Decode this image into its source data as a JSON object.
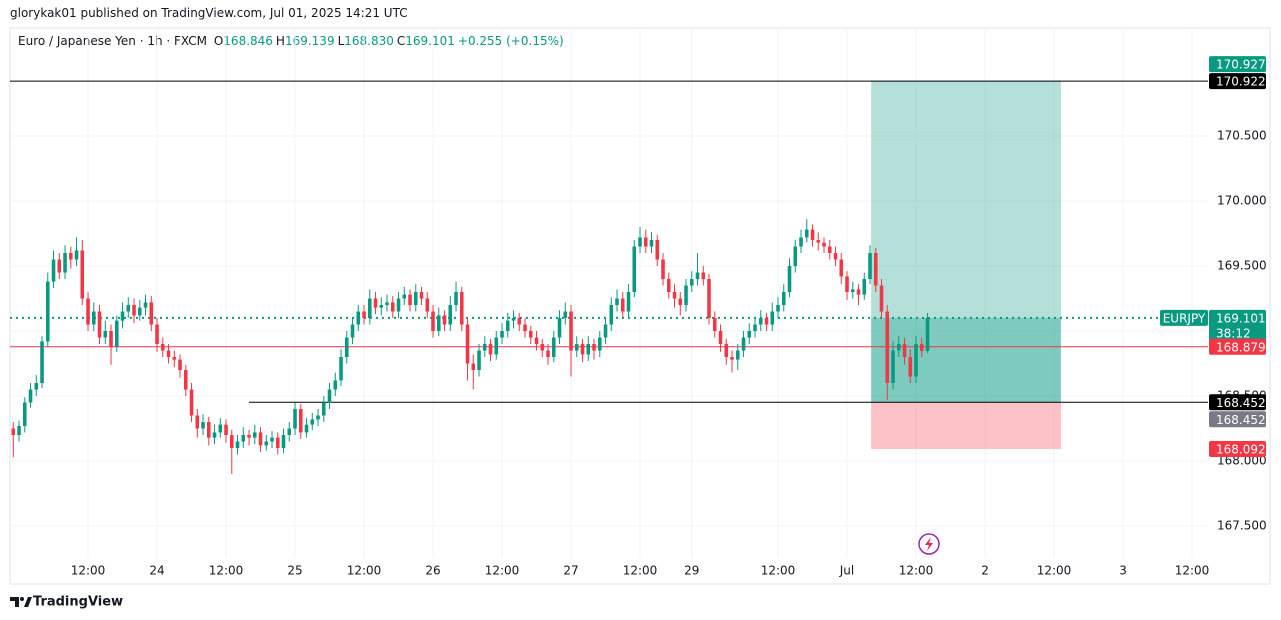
{
  "header": {
    "publisher": "glorykak01 published on TradingView.com, Jul 01, 2025 14:21 UTC"
  },
  "chart_data": {
    "type": "candlestick",
    "title": "Euro / Japanese Yen · 1h · FXCM",
    "ohlc": [
      {
        "label": "O",
        "value": "168.846"
      },
      {
        "label": "H",
        "value": "169.139"
      },
      {
        "label": "L",
        "value": "168.830"
      },
      {
        "label": "C",
        "value": "169.101"
      }
    ],
    "change": "+0.255 (+0.15%)",
    "symbol": "EURJPY",
    "countdown": "38:12",
    "up_color": "#089981",
    "down_color": "#f23645",
    "grid": true,
    "xlim": [
      -0.57,
      207.78
    ],
    "xticks": [
      {
        "value": 13,
        "label": "12:00"
      },
      {
        "value": 25,
        "label": "24"
      },
      {
        "value": 37,
        "label": "12:00"
      },
      {
        "value": 49,
        "label": "25"
      },
      {
        "value": 61,
        "label": "12:00"
      },
      {
        "value": 73,
        "label": "26"
      },
      {
        "value": 85,
        "label": "12:00"
      },
      {
        "value": 97,
        "label": "27"
      },
      {
        "value": 109,
        "label": "12:00"
      },
      {
        "value": 118,
        "label": "29"
      },
      {
        "value": 133,
        "label": "12:00"
      },
      {
        "value": 145,
        "label": "Jul"
      },
      {
        "value": 157,
        "label": "12:00"
      },
      {
        "value": 169,
        "label": "2"
      },
      {
        "value": 181,
        "label": "12:00"
      },
      {
        "value": 193,
        "label": "3"
      },
      {
        "value": 205,
        "label": "12:00"
      }
    ],
    "ylim": [
      167.054,
      171.331
    ],
    "yticks": [
      {
        "value": 167.5,
        "label": "167.500"
      },
      {
        "value": 168,
        "label": "168.000"
      },
      {
        "value": 168.5,
        "label": "168.500"
      },
      {
        "value": 169,
        "label": "169.000"
      },
      {
        "value": 169.5,
        "label": "169.500"
      },
      {
        "value": 170,
        "label": "170.000"
      },
      {
        "value": 170.5,
        "label": "170.500"
      }
    ],
    "last_price": 169.101,
    "lines": [
      {
        "value": 170.922,
        "color": "#000000"
      },
      {
        "value": 168.452,
        "color": "#000000",
        "from": 41
      },
      {
        "value": 168.879,
        "color": "#f23645"
      }
    ],
    "position": {
      "x_range": [
        149.2,
        182.2
      ],
      "target": 170.927,
      "entry": 168.452,
      "stop": 168.092
    },
    "price_labels": [
      {
        "value": 170.922,
        "color": "#000000"
      },
      {
        "value": 170.927,
        "color": "#089981"
      },
      {
        "value": 169.101,
        "color": "#089981"
      },
      {
        "value": 168.879,
        "color": "#f23645"
      },
      {
        "value": 168.452,
        "color": "#000000"
      },
      {
        "value": 168.452,
        "color": "#787b86"
      },
      {
        "value": 168.092,
        "color": "#f23645"
      }
    ],
    "candles": [
      [
        168.25,
        168.3,
        168.03,
        168.2
      ],
      [
        168.2,
        168.31,
        168.15,
        168.27
      ],
      [
        168.27,
        168.49,
        168.22,
        168.45
      ],
      [
        168.45,
        168.6,
        168.41,
        168.55
      ],
      [
        168.55,
        168.66,
        168.5,
        168.6
      ],
      [
        168.6,
        168.96,
        168.56,
        168.92
      ],
      [
        168.92,
        169.45,
        168.88,
        169.38
      ],
      [
        169.38,
        169.62,
        169.33,
        169.55
      ],
      [
        169.55,
        169.6,
        169.4,
        169.45
      ],
      [
        169.45,
        169.66,
        169.4,
        169.6
      ],
      [
        169.6,
        169.65,
        169.48,
        169.55
      ],
      [
        169.55,
        169.72,
        169.5,
        169.62
      ],
      [
        169.62,
        169.7,
        169.2,
        169.25
      ],
      [
        169.25,
        169.3,
        169.0,
        169.05
      ],
      [
        169.05,
        169.22,
        169.0,
        169.15
      ],
      [
        169.15,
        169.2,
        168.9,
        168.95
      ],
      [
        168.95,
        169.08,
        168.9,
        169.0
      ],
      [
        169.0,
        169.05,
        168.74,
        168.88
      ],
      [
        168.88,
        169.12,
        168.84,
        169.08
      ],
      [
        169.08,
        169.22,
        169.02,
        169.15
      ],
      [
        169.15,
        169.26,
        169.1,
        169.2
      ],
      [
        169.2,
        169.25,
        169.06,
        169.12
      ],
      [
        169.12,
        169.24,
        169.08,
        169.18
      ],
      [
        169.18,
        169.28,
        169.12,
        169.22
      ],
      [
        169.22,
        169.27,
        169.0,
        169.05
      ],
      [
        169.05,
        169.1,
        168.84,
        168.9
      ],
      [
        168.9,
        168.95,
        168.8,
        168.85
      ],
      [
        168.85,
        168.9,
        168.75,
        168.8
      ],
      [
        168.8,
        168.85,
        168.72,
        168.78
      ],
      [
        168.78,
        168.82,
        168.64,
        168.7
      ],
      [
        168.7,
        168.74,
        168.5,
        168.55
      ],
      [
        168.55,
        168.6,
        168.3,
        168.35
      ],
      [
        168.35,
        168.4,
        168.18,
        168.25
      ],
      [
        168.25,
        168.36,
        168.2,
        168.3
      ],
      [
        168.3,
        168.34,
        168.12,
        168.18
      ],
      [
        168.18,
        168.28,
        168.13,
        168.22
      ],
      [
        168.22,
        168.33,
        168.18,
        168.28
      ],
      [
        168.28,
        168.32,
        168.14,
        168.2
      ],
      [
        168.2,
        168.24,
        167.9,
        168.1
      ],
      [
        168.1,
        168.2,
        168.05,
        168.15
      ],
      [
        168.15,
        168.26,
        168.1,
        168.2
      ],
      [
        168.2,
        168.24,
        168.12,
        168.18
      ],
      [
        168.18,
        168.28,
        168.13,
        168.22
      ],
      [
        168.22,
        168.26,
        168.07,
        168.12
      ],
      [
        168.12,
        168.2,
        168.08,
        168.15
      ],
      [
        168.15,
        168.23,
        168.1,
        168.18
      ],
      [
        168.18,
        168.22,
        168.05,
        168.1
      ],
      [
        168.1,
        168.25,
        168.06,
        168.2
      ],
      [
        168.2,
        168.3,
        168.15,
        168.25
      ],
      [
        168.25,
        168.45,
        168.2,
        168.4
      ],
      [
        168.4,
        168.44,
        168.17,
        168.22
      ],
      [
        168.22,
        168.33,
        168.18,
        168.28
      ],
      [
        168.28,
        168.37,
        168.24,
        168.32
      ],
      [
        168.32,
        168.4,
        168.27,
        168.35
      ],
      [
        168.35,
        168.5,
        168.3,
        168.45
      ],
      [
        168.45,
        168.6,
        168.4,
        168.55
      ],
      [
        168.55,
        168.68,
        168.5,
        168.62
      ],
      [
        168.62,
        168.86,
        168.58,
        168.8
      ],
      [
        168.8,
        169.0,
        168.75,
        168.95
      ],
      [
        168.95,
        169.1,
        168.9,
        169.05
      ],
      [
        169.05,
        169.2,
        169.0,
        169.15
      ],
      [
        169.15,
        169.2,
        169.05,
        169.1
      ],
      [
        169.1,
        169.32,
        169.05,
        169.25
      ],
      [
        169.25,
        169.3,
        169.13,
        169.18
      ],
      [
        169.18,
        169.26,
        169.12,
        169.2
      ],
      [
        169.2,
        169.28,
        169.15,
        169.22
      ],
      [
        169.22,
        169.27,
        169.1,
        169.15
      ],
      [
        169.15,
        169.3,
        169.1,
        169.25
      ],
      [
        169.25,
        169.34,
        169.2,
        169.28
      ],
      [
        169.28,
        169.32,
        169.15,
        169.2
      ],
      [
        169.2,
        169.36,
        169.15,
        169.3
      ],
      [
        169.3,
        169.34,
        169.2,
        169.25
      ],
      [
        169.25,
        169.3,
        169.1,
        169.15
      ],
      [
        169.15,
        169.2,
        168.95,
        169.0
      ],
      [
        169.0,
        169.18,
        168.96,
        169.12
      ],
      [
        169.12,
        169.16,
        169.0,
        169.05
      ],
      [
        169.05,
        169.27,
        169.0,
        169.2
      ],
      [
        169.2,
        169.38,
        169.15,
        169.3
      ],
      [
        169.3,
        169.34,
        169.0,
        169.05
      ],
      [
        169.05,
        169.1,
        168.62,
        168.75
      ],
      [
        168.75,
        168.82,
        168.55,
        168.7
      ],
      [
        168.7,
        168.9,
        168.65,
        168.85
      ],
      [
        168.85,
        168.96,
        168.8,
        168.9
      ],
      [
        168.9,
        168.94,
        168.77,
        168.82
      ],
      [
        168.82,
        169.0,
        168.78,
        168.95
      ],
      [
        168.95,
        169.06,
        168.9,
        169.0
      ],
      [
        169.0,
        169.14,
        168.95,
        169.08
      ],
      [
        169.08,
        169.16,
        169.02,
        169.1
      ],
      [
        169.1,
        169.14,
        169.0,
        169.05
      ],
      [
        169.05,
        169.1,
        168.95,
        169.0
      ],
      [
        169.0,
        169.04,
        168.9,
        168.95
      ],
      [
        168.95,
        169.0,
        168.85,
        168.9
      ],
      [
        168.9,
        168.94,
        168.8,
        168.85
      ],
      [
        168.85,
        168.9,
        168.74,
        168.8
      ],
      [
        168.8,
        169.0,
        168.76,
        168.95
      ],
      [
        168.95,
        169.16,
        168.9,
        169.1
      ],
      [
        169.1,
        169.22,
        169.05,
        169.15
      ],
      [
        169.15,
        169.2,
        168.65,
        168.85
      ],
      [
        168.85,
        168.96,
        168.8,
        168.9
      ],
      [
        168.9,
        168.94,
        168.76,
        168.82
      ],
      [
        168.82,
        168.96,
        168.77,
        168.9
      ],
      [
        168.9,
        168.94,
        168.78,
        168.85
      ],
      [
        168.85,
        169.0,
        168.8,
        168.95
      ],
      [
        168.95,
        169.1,
        168.9,
        169.05
      ],
      [
        169.05,
        169.26,
        169.0,
        169.2
      ],
      [
        169.2,
        169.32,
        169.15,
        169.25
      ],
      [
        169.25,
        169.3,
        169.1,
        169.15
      ],
      [
        169.15,
        169.36,
        169.1,
        169.3
      ],
      [
        169.3,
        169.7,
        169.26,
        169.65
      ],
      [
        169.65,
        169.8,
        169.6,
        169.72
      ],
      [
        169.72,
        169.78,
        169.6,
        169.65
      ],
      [
        169.65,
        169.76,
        169.6,
        169.7
      ],
      [
        169.7,
        169.74,
        169.5,
        169.55
      ],
      [
        169.55,
        169.6,
        169.35,
        169.4
      ],
      [
        169.4,
        169.45,
        169.25,
        169.3
      ],
      [
        169.3,
        169.36,
        169.18,
        169.25
      ],
      [
        169.25,
        169.3,
        169.12,
        169.2
      ],
      [
        169.2,
        169.4,
        169.15,
        169.35
      ],
      [
        169.35,
        169.46,
        169.3,
        169.4
      ],
      [
        169.4,
        169.6,
        169.35,
        169.45
      ],
      [
        169.45,
        169.5,
        169.35,
        169.4
      ],
      [
        169.4,
        169.44,
        169.05,
        169.1
      ],
      [
        169.1,
        169.15,
        168.95,
        169.0
      ],
      [
        169.0,
        169.05,
        168.84,
        168.9
      ],
      [
        168.9,
        168.94,
        168.74,
        168.8
      ],
      [
        168.8,
        168.85,
        168.68,
        168.78
      ],
      [
        168.78,
        168.9,
        168.7,
        168.85
      ],
      [
        168.85,
        169.0,
        168.8,
        168.95
      ],
      [
        168.95,
        169.06,
        168.9,
        169.0
      ],
      [
        169.0,
        169.1,
        168.95,
        169.05
      ],
      [
        169.05,
        169.16,
        169.0,
        169.1
      ],
      [
        169.1,
        169.14,
        169.0,
        169.05
      ],
      [
        169.05,
        169.22,
        169.0,
        169.15
      ],
      [
        169.15,
        169.26,
        169.1,
        169.2
      ],
      [
        169.2,
        169.36,
        169.15,
        169.3
      ],
      [
        169.3,
        169.56,
        169.26,
        169.5
      ],
      [
        169.5,
        169.7,
        169.45,
        169.65
      ],
      [
        169.65,
        169.78,
        169.6,
        169.72
      ],
      [
        169.72,
        169.86,
        169.68,
        169.78
      ],
      [
        169.78,
        169.82,
        169.65,
        169.7
      ],
      [
        169.7,
        169.76,
        169.62,
        169.68
      ],
      [
        169.68,
        169.72,
        169.6,
        169.65
      ],
      [
        169.65,
        169.7,
        169.55,
        169.6
      ],
      [
        169.6,
        169.65,
        169.5,
        169.55
      ],
      [
        169.55,
        169.6,
        169.36,
        169.42
      ],
      [
        169.42,
        169.46,
        169.24,
        169.3
      ],
      [
        169.3,
        169.38,
        169.25,
        169.32
      ],
      [
        169.32,
        169.36,
        169.2,
        169.28
      ],
      [
        169.28,
        169.45,
        169.24,
        169.4
      ],
      [
        169.4,
        169.66,
        169.36,
        169.6
      ],
      [
        169.6,
        169.64,
        169.3,
        169.35
      ],
      [
        169.35,
        169.4,
        169.1,
        169.15
      ],
      [
        169.15,
        169.2,
        168.47,
        168.6
      ],
      [
        168.6,
        168.92,
        168.55,
        168.85
      ],
      [
        168.85,
        168.96,
        168.8,
        168.9
      ],
      [
        168.9,
        168.95,
        168.74,
        168.8
      ],
      [
        168.8,
        168.86,
        168.6,
        168.65
      ],
      [
        168.65,
        168.96,
        168.6,
        168.9
      ],
      [
        168.9,
        168.95,
        168.8,
        168.846
      ],
      [
        168.846,
        169.139,
        168.83,
        169.101
      ]
    ]
  },
  "footer": {
    "brand": "TradingView"
  }
}
